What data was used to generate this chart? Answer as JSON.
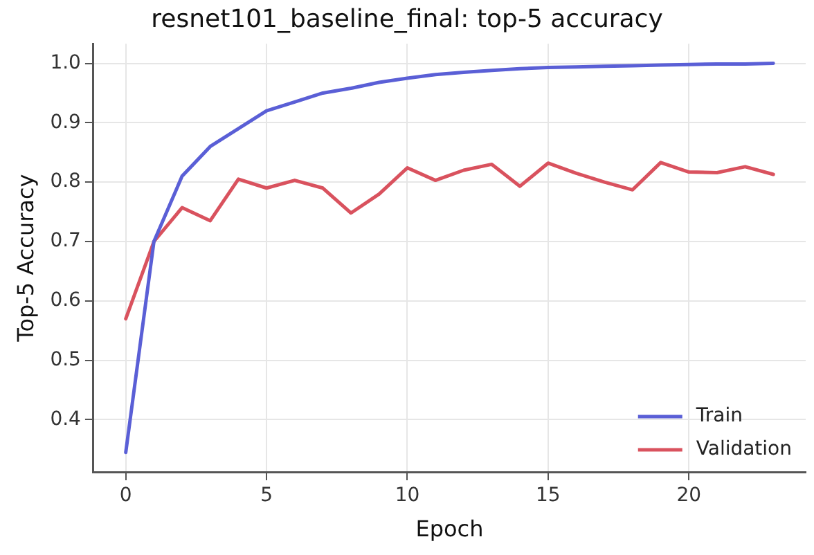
{
  "chart_data": {
    "type": "line",
    "title": "resnet101_baseline_final: top-5 accuracy",
    "xlabel": "Epoch",
    "ylabel": "Top-5 Accuracy",
    "x": [
      0,
      1,
      2,
      3,
      4,
      5,
      6,
      7,
      8,
      9,
      10,
      11,
      12,
      13,
      14,
      15,
      16,
      17,
      18,
      19,
      20,
      21,
      22,
      23
    ],
    "series": [
      {
        "name": "Train",
        "color": "#5a5fd6",
        "values": [
          0.345,
          0.7,
          0.81,
          0.86,
          0.89,
          0.92,
          0.935,
          0.95,
          0.958,
          0.968,
          0.975,
          0.981,
          0.985,
          0.988,
          0.991,
          0.993,
          0.994,
          0.995,
          0.996,
          0.997,
          0.998,
          0.999,
          0.999,
          1.0
        ]
      },
      {
        "name": "Validation",
        "color": "#d9525e",
        "values": [
          0.57,
          0.7,
          0.757,
          0.735,
          0.805,
          0.79,
          0.803,
          0.79,
          0.748,
          0.78,
          0.824,
          0.803,
          0.82,
          0.83,
          0.793,
          0.832,
          0.815,
          0.8,
          0.787,
          0.833,
          0.817,
          0.816,
          0.826,
          0.813
        ]
      }
    ],
    "xlim": [
      -1.15,
      24.15
    ],
    "xticks": [
      0,
      5,
      10,
      15,
      20
    ],
    "ylim": [
      0.312,
      1.033
    ],
    "yticks": [
      0.4,
      0.5,
      0.6,
      0.7,
      0.8,
      0.9,
      {
        "value": 1,
        "label": "1.0"
      }
    ],
    "grid": true,
    "legend": "bottom right",
    "marker": "none",
    "line_style": "solid"
  }
}
